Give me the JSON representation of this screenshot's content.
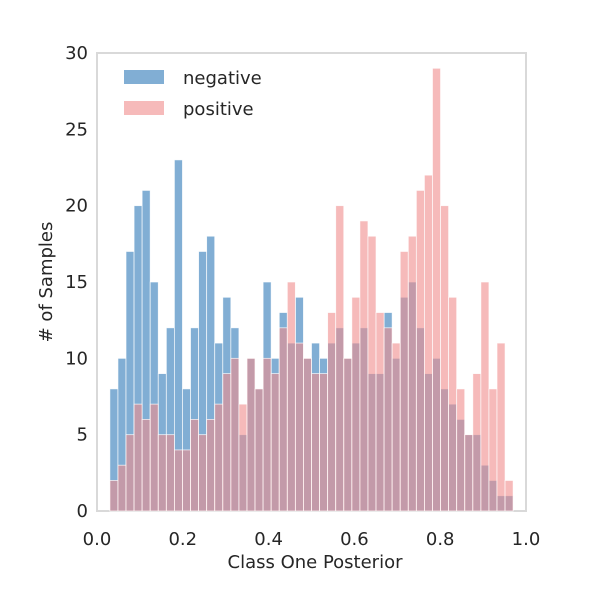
{
  "chart_data": {
    "type": "bar",
    "subtype": "overlapping histogram",
    "xlabel": "Class One Posterior",
    "ylabel": "# of Samples",
    "xlim": [
      0.0,
      1.0
    ],
    "ylim": [
      0,
      30
    ],
    "x_ticks": [
      {
        "value": 0.0,
        "label": "0.0"
      },
      {
        "value": 0.2,
        "label": "0.2"
      },
      {
        "value": 0.4,
        "label": "0.4"
      },
      {
        "value": 0.6,
        "label": "0.6"
      },
      {
        "value": 0.8,
        "label": "0.8"
      },
      {
        "value": 1.0,
        "label": "1.0"
      }
    ],
    "y_ticks": [
      {
        "value": 0,
        "label": "0"
      },
      {
        "value": 5,
        "label": "5"
      },
      {
        "value": 10,
        "label": "10"
      },
      {
        "value": 15,
        "label": "15"
      },
      {
        "value": 20,
        "label": "20"
      },
      {
        "value": 25,
        "label": "25"
      },
      {
        "value": 30,
        "label": "30"
      }
    ],
    "grid": false,
    "legend_position": "top-left",
    "bin_range": [
      0.03,
      0.97
    ],
    "series": [
      {
        "name": "negative",
        "color": "#4c8bc2",
        "opacity": 0.7,
        "values": [
          8,
          10,
          17,
          20,
          21,
          15,
          9,
          12,
          23,
          8,
          12,
          17,
          18,
          11,
          14,
          12,
          5,
          10,
          8,
          15,
          10,
          13,
          11,
          14,
          10,
          11,
          10,
          11,
          12,
          10,
          11,
          12,
          9,
          9,
          13,
          10,
          14,
          15,
          12,
          9,
          10,
          8,
          7,
          6,
          5,
          5,
          3,
          2,
          1,
          1
        ]
      },
      {
        "name": "positive",
        "color": "#f08c8c",
        "opacity": 0.6,
        "values": [
          2,
          3,
          5,
          7,
          6,
          7,
          5,
          5,
          4,
          4,
          6,
          5,
          6,
          7,
          9,
          10,
          7,
          10,
          8,
          10,
          9,
          12,
          15,
          11,
          10,
          9,
          9,
          13,
          20,
          10,
          14,
          19,
          18,
          13,
          12,
          11,
          17,
          18,
          21,
          22,
          29,
          20,
          14,
          8,
          5,
          9,
          15,
          8,
          11,
          2
        ]
      }
    ]
  }
}
